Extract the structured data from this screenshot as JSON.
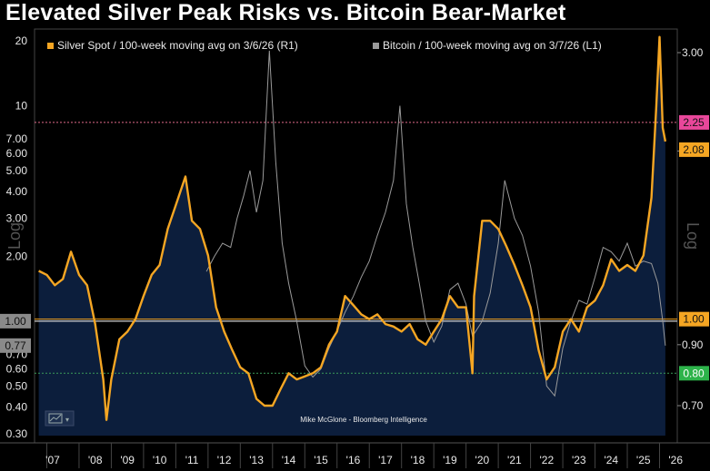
{
  "title": "Elevated Silver Peak Risks vs. Bitcoin Bear-Market",
  "credit": "Mike McGlone - Bloomberg Intelligence",
  "axis_word_left": "Log",
  "axis_word_right": "Log",
  "colors": {
    "background": "#000000",
    "plot_fill": "#0c1e3c",
    "silver": "#f5a623",
    "bitcoin": "#9a9a9a",
    "ref_line_pink": "#e06a8a",
    "ref_line_green": "#3a9a5a",
    "tag_pink": "#e8479a",
    "tag_orange": "#f5a623",
    "tag_green": "#2db34a",
    "tag_gray": "#8a8a8a"
  },
  "chart_data": {
    "type": "line",
    "legend": [
      {
        "name": "Silver Spot / 100-week moving avg on 3/6/26 (R1)",
        "color": "#f5a623"
      },
      {
        "name": "Bitcoin / 100-week moving avg on 3/7/26 (L1)",
        "color": "#9a9a9a"
      }
    ],
    "legend_placement": "top-left",
    "left_axis": {
      "scale": "log",
      "range": [
        0.28,
        20
      ],
      "ticks": [
        "20",
        "10",
        "7.00",
        "6.00",
        "5.00",
        "4.00",
        "3.00",
        "2.00",
        "1.00",
        "0.77",
        "0.70",
        "0.60",
        "0.50",
        "0.40",
        "0.30"
      ]
    },
    "right_axis": {
      "scale": "log",
      "range": [
        0.63,
        3.2
      ],
      "ticks": [
        "3.00",
        "2.00",
        "0.90",
        "0.70"
      ]
    },
    "x_ticks": [
      "'07",
      "'08",
      "'09",
      "'10",
      "'11",
      "'12",
      "'13",
      "'14",
      "'15",
      "'16",
      "'17",
      "'18",
      "'19",
      "'20",
      "'21",
      "'22",
      "'23",
      "'24",
      "'25",
      "'26"
    ],
    "right_tags": [
      {
        "label": "2.25",
        "style": "pink"
      },
      {
        "label": "2.08",
        "style": "orange"
      },
      {
        "label": "1.00",
        "style": "orange"
      },
      {
        "label": "0.80",
        "style": "green"
      }
    ],
    "left_tags": [
      {
        "label": "1.00",
        "style": "gray"
      },
      {
        "label": "0.77",
        "style": "gray"
      }
    ],
    "reference_lines": [
      {
        "axis": "right",
        "value": 2.25,
        "color": "pink"
      },
      {
        "axis": "right",
        "value": 1.0,
        "color": "orange"
      },
      {
        "axis": "right",
        "value": 0.8,
        "color": "green"
      }
    ],
    "series": [
      {
        "name": "Silver Spot / 100-week moving avg on 3/6/26 (R1)",
        "axis": "right",
        "x": [
          2006.75,
          2007.0,
          2007.25,
          2007.5,
          2007.75,
          2008.0,
          2008.25,
          2008.5,
          2008.75,
          2008.85,
          2009.0,
          2009.25,
          2009.5,
          2009.75,
          2010.0,
          2010.25,
          2010.5,
          2010.75,
          2011.0,
          2011.3,
          2011.5,
          2011.75,
          2012.0,
          2012.25,
          2012.5,
          2012.75,
          2013.0,
          2013.25,
          2013.5,
          2013.75,
          2014.0,
          2014.25,
          2014.5,
          2014.75,
          2015.0,
          2015.25,
          2015.5,
          2015.75,
          2016.0,
          2016.25,
          2016.5,
          2016.75,
          2017.0,
          2017.25,
          2017.5,
          2017.75,
          2018.0,
          2018.25,
          2018.5,
          2018.75,
          2019.0,
          2019.25,
          2019.5,
          2019.75,
          2020.0,
          2020.2,
          2020.25,
          2020.5,
          2020.75,
          2021.0,
          2021.25,
          2021.5,
          2021.75,
          2022.0,
          2022.25,
          2022.5,
          2022.75,
          2023.0,
          2023.25,
          2023.5,
          2023.75,
          2024.0,
          2024.25,
          2024.5,
          2024.75,
          2025.0,
          2025.25,
          2025.5,
          2025.75,
          2025.9,
          2026.0,
          2026.1,
          2026.18
        ],
        "values": [
          1.22,
          1.2,
          1.15,
          1.18,
          1.32,
          1.2,
          1.15,
          0.98,
          0.78,
          0.66,
          0.78,
          0.92,
          0.95,
          1.0,
          1.1,
          1.2,
          1.25,
          1.45,
          1.6,
          1.8,
          1.5,
          1.45,
          1.3,
          1.05,
          0.95,
          0.88,
          0.82,
          0.8,
          0.72,
          0.7,
          0.7,
          0.75,
          0.8,
          0.78,
          0.79,
          0.8,
          0.82,
          0.9,
          0.95,
          1.1,
          1.06,
          1.02,
          1.0,
          1.02,
          0.98,
          0.97,
          0.95,
          0.98,
          0.92,
          0.9,
          0.95,
          1.0,
          1.1,
          1.05,
          1.05,
          0.8,
          1.1,
          1.5,
          1.5,
          1.45,
          1.35,
          1.25,
          1.15,
          1.05,
          0.88,
          0.78,
          0.82,
          0.95,
          1.0,
          0.95,
          1.05,
          1.08,
          1.15,
          1.28,
          1.22,
          1.25,
          1.22,
          1.3,
          1.65,
          2.4,
          3.2,
          2.2,
          2.08
        ]
      },
      {
        "name": "Bitcoin / 100-week moving avg on 3/7/26 (L1)",
        "axis": "left",
        "x": [
          2011.95,
          2012.2,
          2012.45,
          2012.7,
          2012.9,
          2013.1,
          2013.3,
          2013.5,
          2013.7,
          2013.9,
          2014.1,
          2014.3,
          2014.5,
          2014.75,
          2015.0,
          2015.25,
          2015.5,
          2015.75,
          2016.0,
          2016.25,
          2016.5,
          2016.75,
          2017.0,
          2017.25,
          2017.5,
          2017.75,
          2017.95,
          2018.15,
          2018.35,
          2018.55,
          2018.75,
          2019.0,
          2019.25,
          2019.5,
          2019.75,
          2020.0,
          2020.2,
          2020.5,
          2020.75,
          2021.0,
          2021.2,
          2021.5,
          2021.75,
          2022.0,
          2022.25,
          2022.5,
          2022.75,
          2023.0,
          2023.25,
          2023.5,
          2023.75,
          2024.0,
          2024.25,
          2024.5,
          2024.75,
          2025.0,
          2025.25,
          2025.5,
          2025.75,
          2025.95,
          2026.1,
          2026.18
        ],
        "values": [
          1.7,
          2.0,
          2.3,
          2.2,
          3.0,
          3.8,
          5.0,
          3.2,
          4.5,
          18.0,
          5.5,
          2.3,
          1.5,
          1.0,
          0.62,
          0.55,
          0.6,
          0.75,
          0.9,
          1.1,
          1.3,
          1.6,
          1.9,
          2.5,
          3.2,
          4.5,
          10.0,
          3.5,
          2.2,
          1.5,
          1.0,
          0.8,
          0.95,
          1.4,
          1.5,
          1.2,
          0.85,
          1.0,
          1.35,
          2.3,
          4.5,
          3.0,
          2.5,
          1.8,
          1.1,
          0.5,
          0.45,
          0.75,
          1.0,
          1.25,
          1.2,
          1.6,
          2.2,
          2.1,
          1.9,
          2.3,
          1.8,
          1.9,
          1.85,
          1.5,
          1.0,
          0.77
        ]
      }
    ]
  }
}
